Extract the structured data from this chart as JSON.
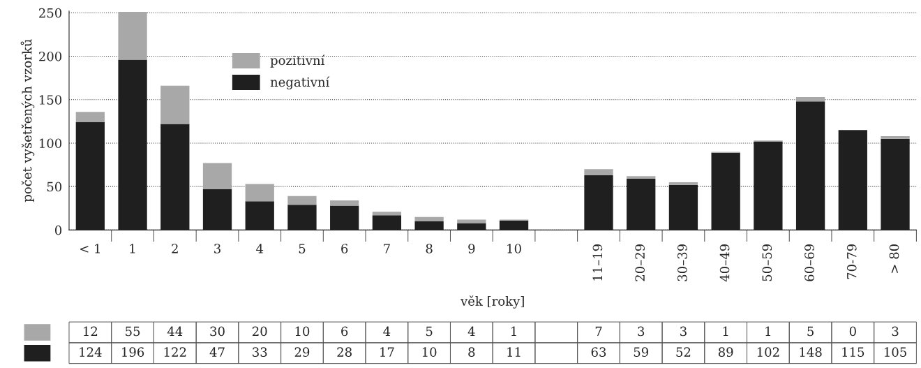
{
  "chart_data": {
    "type": "bar",
    "stacked": true,
    "xlabel": "věk [roky]",
    "ylabel": "počet vyšetřených vzorků",
    "categories": [
      "< 1",
      "1",
      "2",
      "3",
      "4",
      "5",
      "6",
      "7",
      "8",
      "9",
      "10",
      null,
      "11–19",
      "20–29",
      "30–39",
      "40–49",
      "50–59",
      "60–69",
      "70-79",
      "> 80"
    ],
    "series": [
      {
        "name": "negativní",
        "color": "#1f1f1f",
        "values": [
          124,
          196,
          122,
          47,
          33,
          29,
          28,
          17,
          10,
          8,
          11,
          null,
          63,
          59,
          52,
          89,
          102,
          148,
          115,
          105
        ]
      },
      {
        "name": "pozitivní",
        "color": "#a8a8a8",
        "values": [
          12,
          55,
          44,
          30,
          20,
          10,
          6,
          4,
          5,
          4,
          1,
          null,
          7,
          3,
          3,
          1,
          1,
          5,
          0,
          3
        ]
      }
    ],
    "ylim": [
      0,
      252
    ],
    "yticks": [
      0,
      50,
      100,
      150,
      200,
      250
    ],
    "grid": "y",
    "legend": "top center",
    "data_labels": true
  }
}
